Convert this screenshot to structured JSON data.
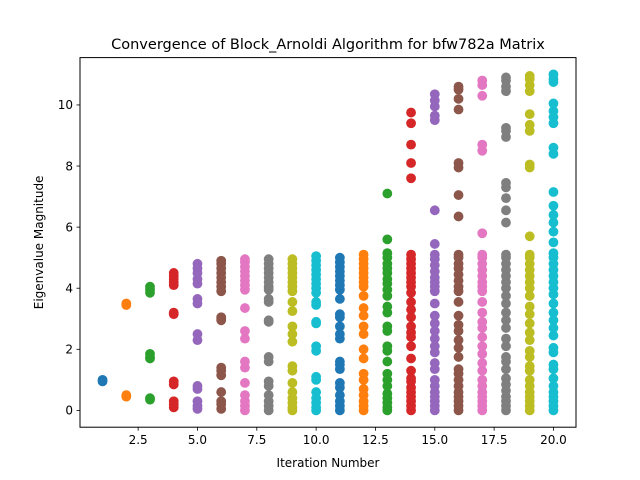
{
  "chart_data": {
    "type": "scatter",
    "title": "Convergence of Block_Arnoldi Algorithm for bfw782a Matrix",
    "xlabel": "Iteration Number",
    "ylabel": "Eigenvalue Magnitude",
    "xlim": [
      0.05,
      20.95
    ],
    "ylim": [
      -0.55,
      11.55
    ],
    "xticks": [
      2.5,
      5.0,
      7.5,
      10.0,
      12.5,
      15.0,
      17.5,
      20.0
    ],
    "xtick_labels": [
      "2.5",
      "5.0",
      "7.5",
      "10.0",
      "12.5",
      "15.0",
      "17.5",
      "20.0"
    ],
    "yticks": [
      0,
      2,
      4,
      6,
      8,
      10
    ],
    "ytick_labels": [
      "0",
      "2",
      "4",
      "6",
      "8",
      "10"
    ],
    "grid": false,
    "legend": "none",
    "colors": [
      "#1f77b4",
      "#ff7f0e",
      "#2ca02c",
      "#d62728",
      "#9467bd",
      "#8c564b",
      "#e377c2",
      "#7f7f7f",
      "#bcbd22",
      "#17becf"
    ],
    "series": [
      {
        "x": 1,
        "y": [
          0.95,
          1.0
        ]
      },
      {
        "x": 2,
        "y": [
          0.45,
          0.5,
          3.45,
          3.5
        ]
      },
      {
        "x": 3,
        "y": [
          0.35,
          0.4,
          1.7,
          1.75,
          1.85,
          3.85,
          3.95,
          4.05
        ]
      },
      {
        "x": 4,
        "y": [
          0.1,
          0.2,
          0.3,
          0.85,
          0.95,
          3.15,
          3.2,
          4.1,
          4.2,
          4.3,
          4.4,
          4.5
        ]
      },
      {
        "x": 5,
        "y": [
          0.05,
          0.15,
          0.3,
          0.7,
          0.8,
          2.3,
          2.5,
          3.5,
          3.65,
          4.15,
          4.3,
          4.5,
          4.65,
          4.8
        ]
      },
      {
        "x": 6,
        "y": [
          0.05,
          0.2,
          0.3,
          0.6,
          1.15,
          1.3,
          1.4,
          2.95,
          3.0,
          3.05,
          3.9,
          4.05,
          4.2,
          4.35,
          4.5,
          4.65,
          4.8,
          4.9
        ]
      },
      {
        "x": 7,
        "y": [
          0.0,
          0.15,
          0.3,
          0.5,
          0.9,
          1.4,
          1.6,
          2.35,
          2.6,
          3.35,
          3.95,
          4.1,
          4.25,
          4.4,
          4.55,
          4.7,
          4.85,
          4.95
        ]
      },
      {
        "x": 8,
        "y": [
          0.0,
          0.15,
          0.3,
          0.5,
          0.8,
          0.95,
          1.6,
          1.75,
          2.9,
          2.95,
          3.55,
          3.65,
          3.95,
          4.05,
          4.2,
          4.35,
          4.5,
          4.65,
          4.8,
          4.95
        ]
      },
      {
        "x": 9,
        "y": [
          0.0,
          0.1,
          0.25,
          0.4,
          0.6,
          0.9,
          1.3,
          1.45,
          2.25,
          2.5,
          2.75,
          3.25,
          3.55,
          3.9,
          4.05,
          4.2,
          4.35,
          4.5,
          4.65,
          4.8,
          4.95
        ]
      },
      {
        "x": 10,
        "y": [
          0.0,
          0.1,
          0.25,
          0.4,
          0.6,
          1.0,
          1.1,
          1.95,
          2.1,
          2.85,
          2.9,
          3.45,
          3.55,
          3.85,
          4.0,
          4.15,
          4.3,
          4.45,
          4.6,
          4.75,
          4.9,
          5.05
        ]
      },
      {
        "x": 11,
        "y": [
          0.0,
          0.15,
          0.3,
          0.5,
          0.75,
          0.9,
          1.35,
          1.5,
          1.6,
          2.35,
          2.5,
          2.75,
          3.05,
          3.15,
          3.65,
          3.95,
          4.1,
          4.25,
          4.4,
          4.55,
          4.7,
          4.85,
          5.0
        ]
      },
      {
        "x": 12,
        "y": [
          0.0,
          0.15,
          0.3,
          0.5,
          0.7,
          1.0,
          1.2,
          1.7,
          2.0,
          2.5,
          2.75,
          3.1,
          3.35,
          3.75,
          4.05,
          4.2,
          4.35,
          4.5,
          4.65,
          4.8,
          4.95,
          5.1
        ]
      },
      {
        "x": 13,
        "y": [
          0.0,
          0.1,
          0.25,
          0.4,
          0.55,
          0.8,
          1.0,
          1.2,
          1.6,
          1.95,
          2.1,
          2.6,
          2.75,
          3.2,
          3.4,
          3.75,
          3.95,
          4.15,
          4.3,
          4.5,
          4.65,
          4.8,
          5.0,
          5.15,
          5.6,
          7.1
        ]
      },
      {
        "x": 14,
        "y": [
          0.0,
          0.15,
          0.3,
          0.45,
          0.6,
          0.75,
          0.95,
          1.05,
          1.3,
          1.7,
          2.1,
          2.4,
          2.55,
          2.75,
          3.05,
          3.3,
          3.55,
          3.85,
          4.05,
          4.2,
          4.35,
          4.5,
          4.65,
          4.8,
          4.95,
          5.1,
          7.6,
          8.1,
          8.7,
          9.4,
          9.75
        ]
      },
      {
        "x": 15,
        "y": [
          0.0,
          0.15,
          0.3,
          0.45,
          0.6,
          0.8,
          1.0,
          1.35,
          1.55,
          1.9,
          2.1,
          2.35,
          2.6,
          2.85,
          3.1,
          3.5,
          3.9,
          4.05,
          4.2,
          4.35,
          4.55,
          4.75,
          4.95,
          5.1,
          5.45,
          6.55,
          9.5,
          9.65,
          9.95,
          10.15,
          10.35
        ]
      },
      {
        "x": 16,
        "y": [
          0.0,
          0.15,
          0.3,
          0.45,
          0.6,
          0.8,
          1.0,
          1.2,
          1.35,
          1.75,
          2.05,
          2.3,
          2.6,
          2.8,
          3.1,
          3.55,
          3.9,
          4.05,
          4.25,
          4.45,
          4.65,
          4.8,
          5.0,
          5.1,
          6.35,
          7.05,
          7.95,
          8.1,
          9.85,
          10.2,
          10.5,
          10.6
        ]
      },
      {
        "x": 17,
        "y": [
          0.0,
          0.15,
          0.3,
          0.45,
          0.6,
          0.8,
          1.0,
          1.3,
          1.55,
          1.85,
          2.1,
          2.4,
          2.7,
          2.9,
          3.2,
          3.55,
          3.9,
          4.05,
          4.2,
          4.4,
          4.6,
          4.8,
          5.0,
          5.1,
          5.8,
          8.5,
          8.7,
          10.3,
          10.65,
          10.8
        ]
      },
      {
        "x": 18,
        "y": [
          0.0,
          0.15,
          0.3,
          0.45,
          0.65,
          0.85,
          1.05,
          1.35,
          1.6,
          1.75,
          2.1,
          2.35,
          2.7,
          2.95,
          3.2,
          3.5,
          3.75,
          4.0,
          4.2,
          4.4,
          4.6,
          4.8,
          5.0,
          5.1,
          6.15,
          6.55,
          6.95,
          7.3,
          7.45,
          8.95,
          9.15,
          9.25,
          10.45,
          10.6,
          10.8,
          10.9
        ]
      },
      {
        "x": 19,
        "y": [
          0.0,
          0.15,
          0.3,
          0.45,
          0.6,
          0.8,
          1.0,
          1.3,
          1.45,
          1.75,
          1.95,
          2.3,
          2.55,
          2.85,
          3.15,
          3.4,
          3.75,
          4.0,
          4.2,
          4.4,
          4.6,
          4.8,
          5.0,
          5.1,
          5.7,
          7.95,
          8.05,
          9.15,
          9.35,
          9.7,
          10.45,
          10.65,
          10.85,
          10.95
        ]
      },
      {
        "x": 20,
        "y": [
          0.0,
          0.15,
          0.3,
          0.45,
          0.6,
          0.8,
          1.05,
          1.35,
          1.5,
          1.9,
          2.05,
          2.45,
          2.7,
          2.95,
          3.2,
          3.5,
          3.8,
          4.0,
          4.2,
          4.4,
          4.6,
          4.8,
          5.0,
          5.15,
          5.5,
          5.85,
          6.15,
          6.4,
          6.7,
          7.15,
          8.4,
          8.6,
          9.4,
          9.6,
          9.8,
          10.05,
          10.75,
          10.85,
          11.0
        ]
      }
    ]
  }
}
